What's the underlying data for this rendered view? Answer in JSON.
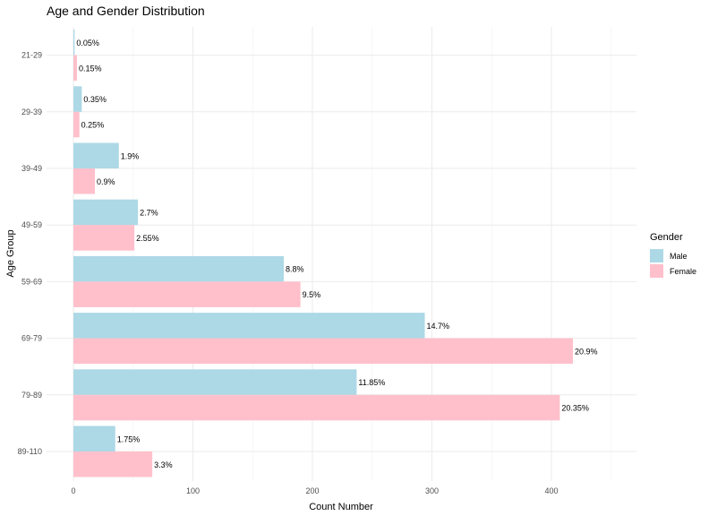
{
  "chart_data": {
    "type": "bar",
    "orientation": "horizontal",
    "title": "Age and Gender Distribution",
    "xlabel": "Count Number",
    "ylabel": "Age Group",
    "xlim": [
      0,
      470
    ],
    "xticks": [
      0,
      100,
      200,
      300,
      400
    ],
    "grid": true,
    "categories": [
      "21-29",
      "29-39",
      "39-49",
      "49-59",
      "59-69",
      "69-79",
      "79-89",
      "89-110"
    ],
    "legend": {
      "title": "Gender",
      "position": "right"
    },
    "series": [
      {
        "name": "Male",
        "color": "#add8e6",
        "values": [
          1,
          7,
          38,
          54,
          176,
          294,
          237,
          35
        ],
        "labels": [
          "0.05%",
          "0.35%",
          "1.9%",
          "2.7%",
          "8.8%",
          "14.7%",
          "11.85%",
          "1.75%"
        ]
      },
      {
        "name": "Female",
        "color": "#ffc0cb",
        "values": [
          3,
          5,
          18,
          51,
          190,
          418,
          407,
          66
        ],
        "labels": [
          "0.15%",
          "0.25%",
          "0.9%",
          "2.55%",
          "9.5%",
          "20.9%",
          "20.35%",
          "3.3%"
        ]
      }
    ]
  }
}
